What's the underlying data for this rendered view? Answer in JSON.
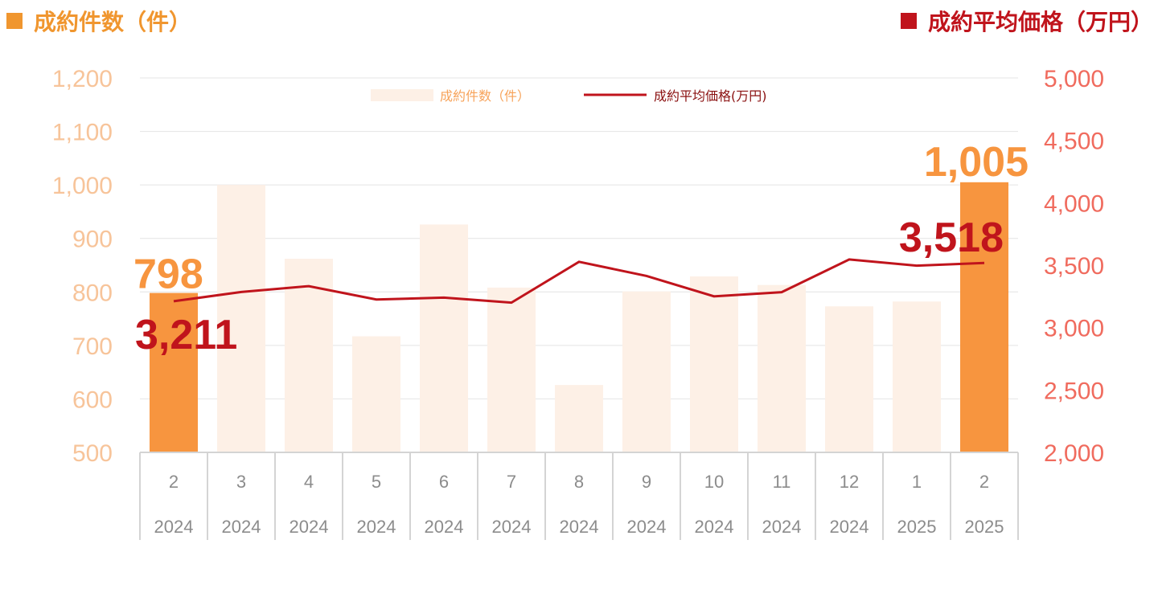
{
  "header": {
    "left_title": "成約件数（件）",
    "right_title": "成約平均価格（万円）"
  },
  "colors": {
    "bar_highlight": "#f7953f",
    "bar_light": "#fdf0e6",
    "line": "#c0141c",
    "left_axis": "#f7c49a",
    "right_axis": "#f06b5e"
  },
  "chart_data": {
    "type": "bar+line",
    "categories": [
      "2",
      "3",
      "4",
      "5",
      "6",
      "7",
      "8",
      "9",
      "10",
      "11",
      "12",
      "1",
      "2"
    ],
    "years": [
      "2024",
      "2024",
      "2024",
      "2024",
      "2024",
      "2024",
      "2024",
      "2024",
      "2024",
      "2024",
      "2024",
      "2025",
      "2025"
    ],
    "series": [
      {
        "name": "成約件数（件）",
        "type": "bar",
        "axis": "left",
        "values": [
          798,
          1000,
          862,
          717,
          926,
          808,
          626,
          801,
          829,
          813,
          773,
          782,
          1005
        ],
        "highlight": [
          true,
          false,
          false,
          false,
          false,
          false,
          false,
          false,
          false,
          false,
          false,
          false,
          true
        ]
      },
      {
        "name": "成約平均価格(万円)",
        "type": "line",
        "axis": "right",
        "values": [
          3211,
          3285,
          3332,
          3225,
          3240,
          3200,
          3527,
          3414,
          3250,
          3284,
          3546,
          3496,
          3518
        ]
      }
    ],
    "left_axis": {
      "min": 500,
      "max": 1200,
      "ticks": [
        "1,200",
        "1,100",
        "1,000",
        "900",
        "800",
        "700",
        "600",
        "500"
      ]
    },
    "right_axis": {
      "min": 2000,
      "max": 5000,
      "ticks": [
        "5,000",
        "4,500",
        "4,000",
        "3,500",
        "3,000",
        "2,500",
        "2,000"
      ]
    },
    "annotations": {
      "first_bar_label": "798",
      "last_bar_label": "1,005",
      "first_line_label": "3,211",
      "last_line_label": "3,518"
    },
    "legend_position": "top-center",
    "grid": true
  }
}
